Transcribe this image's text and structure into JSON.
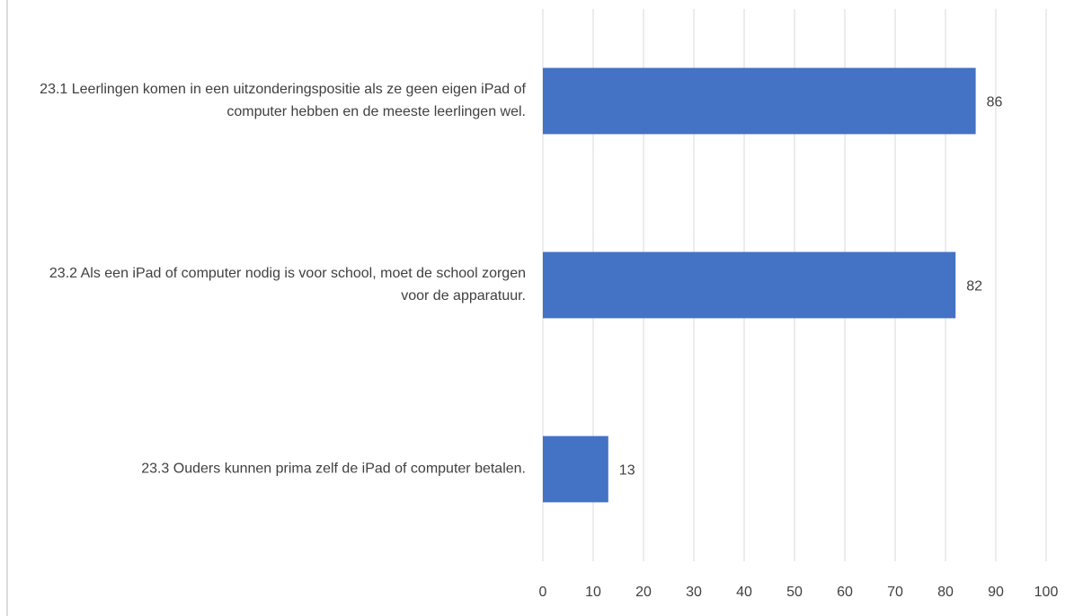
{
  "chart_data": {
    "type": "bar",
    "orientation": "horizontal",
    "categories": [
      "23.1 Leerlingen komen in een uitzonderingspositie als ze geen eigen iPad of computer hebben en de meeste leerlingen wel.",
      "23.2 Als een iPad of computer nodig is voor school, moet de school zorgen voor de apparatuur.",
      "23.3 Ouders kunnen prima zelf de iPad of computer betalen."
    ],
    "values": [
      86,
      82,
      13
    ],
    "color": "#4472c4",
    "xlim": [
      0,
      100
    ],
    "xticks": [
      0,
      10,
      20,
      30,
      40,
      50,
      60,
      70,
      80,
      90,
      100
    ],
    "grid": true
  }
}
